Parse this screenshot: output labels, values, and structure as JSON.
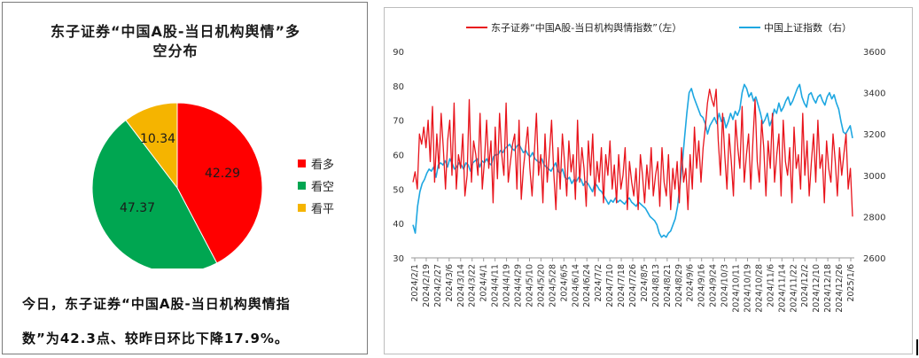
{
  "pie_chart": {
    "title_line1": "东子证券“中国A股-当日机构舆情”多",
    "title_line2": "空分布"
  },
  "note": {
    "line1": "今日，东子证券“中国A股-当日机构舆情指",
    "line2": "数”为42.3点、较昨日环比下降17.9%。"
  },
  "line_chart": {
    "legend_left": "东子证券“中国A股-当日机构舆情指数”（左）",
    "legend_right": "中国上证指数（右）"
  },
  "colors": {
    "bullish": "#ff0000",
    "bearish": "#00a651",
    "neutral": "#f5b400",
    "sentiment_line": "#e8141c",
    "index_line": "#1ea7e1"
  },
  "chart_data": [
    {
      "type": "pie",
      "labels": [
        "看多",
        "看空",
        "看平"
      ],
      "values": [
        42.29,
        47.37,
        10.34
      ],
      "data_labels": [
        "42.29",
        "47.37",
        "10.34"
      ],
      "legend_position": "right"
    },
    {
      "type": "line",
      "x_ticks": [
        "2024/2/1",
        "2024/2/19",
        "2024/2/27",
        "2024/3/6",
        "2024/3/14",
        "2024/3/22",
        "2024/4/1",
        "2024/4/11",
        "2024/4/19",
        "2024/4/29",
        "2024/5/10",
        "2024/5/20",
        "2024/5/28",
        "2024/6/5",
        "2024/6/14",
        "2024/6/24",
        "2024/7/2",
        "2024/7/10",
        "2024/7/18",
        "2024/7/26",
        "2024/8/5",
        "2024/8/13",
        "2024/8/21",
        "2024/8/29",
        "2024/9/6",
        "2024/9/16",
        "2024/9/24",
        "2024/10/3",
        "2024/10/11",
        "2024/10/19",
        "2024/10/28",
        "2024/11/6",
        "2024/11/14",
        "2024/11/22",
        "2024/12/2",
        "2024/12/10",
        "2024/12/18",
        "2024/12/26",
        "2025/1/6"
      ],
      "y_left_ticks": [
        "30",
        "40",
        "50",
        "60",
        "70",
        "80",
        "90"
      ],
      "y_left_range": [
        30,
        90
      ],
      "y_right_ticks": [
        "2600",
        "2800",
        "3000",
        "3200",
        "3400",
        "3600"
      ],
      "y_right_range": [
        2600,
        3600
      ],
      "series": [
        {
          "name": "东子证券“中国A股-当日机构舆情指数”（左）",
          "axis": "left",
          "values": [
            52,
            55,
            50,
            66,
            63,
            68,
            62,
            70,
            58,
            74,
            52,
            66,
            56,
            72,
            62,
            50,
            64,
            70,
            54,
            75,
            50,
            60,
            56,
            66,
            48,
            54,
            76,
            52,
            64,
            60,
            54,
            72,
            50,
            58,
            70,
            56,
            64,
            46,
            68,
            53,
            72,
            60,
            54,
            75,
            52,
            58,
            63,
            66,
            50,
            70,
            47,
            56,
            62,
            68,
            56,
            48,
            60,
            72,
            54,
            60,
            46,
            66,
            52,
            60,
            70,
            55,
            44,
            62,
            50,
            66,
            58,
            48,
            64,
            55,
            60,
            47,
            70,
            52,
            62,
            56,
            45,
            64,
            54,
            66,
            48,
            58,
            52,
            62,
            46,
            60,
            54,
            64,
            50,
            57,
            46,
            60,
            50,
            54,
            62,
            44,
            58,
            52,
            48,
            56,
            44,
            60,
            54,
            46,
            57,
            50,
            62,
            48,
            54,
            58,
            45,
            62,
            52,
            48,
            60,
            44,
            56,
            50,
            58,
            46,
            62,
            52,
            56,
            44,
            60,
            50,
            68,
            56,
            64,
            52,
            62,
            68,
            75,
            79,
            76,
            74,
            79,
            64,
            54,
            72,
            60,
            50,
            66,
            58,
            48,
            70,
            62,
            56,
            74,
            52,
            60,
            66,
            50,
            64,
            76,
            58,
            52,
            70,
            62,
            48,
            64,
            56,
            72,
            52,
            60,
            66,
            48,
            70,
            58,
            54,
            62,
            46,
            68,
            56,
            60,
            50,
            72,
            54,
            64,
            48,
            58,
            66,
            52,
            70,
            56,
            60,
            46,
            64,
            56,
            52,
            66,
            58,
            48,
            62,
            54,
            60,
            66,
            50,
            56,
            42
          ]
        },
        {
          "name": "中国上证指数（右）",
          "axis": "right",
          "values": [
            2760,
            2720,
            2850,
            2920,
            2960,
            2980,
            3010,
            3030,
            3020,
            3040,
            2990,
            3050,
            3060,
            3050,
            3070,
            3040,
            3080,
            3060,
            3030,
            3040,
            3060,
            3050,
            3030,
            3060,
            3050,
            3020,
            3060,
            3070,
            3080,
            3040,
            3070,
            3060,
            3080,
            3060,
            3050,
            3090,
            3100,
            3100,
            3120,
            3110,
            3130,
            3140,
            3150,
            3130,
            3120,
            3140,
            3150,
            3130,
            3110,
            3120,
            3100,
            3090,
            3110,
            3080,
            3070,
            3060,
            3080,
            3050,
            3040,
            3030,
            3020,
            3040,
            3060,
            3020,
            3010,
            3030,
            2990,
            2980,
            2990,
            2960,
            2980,
            2970,
            2990,
            2980,
            2950,
            2970,
            2960,
            2940,
            2920,
            2960,
            2950,
            2930,
            2920,
            2900,
            2880,
            2860,
            2880,
            2870,
            2890,
            2870,
            2880,
            2870,
            2860,
            2880,
            2890,
            2870,
            2860,
            2850,
            2870,
            2860,
            2850,
            2840,
            2820,
            2800,
            2790,
            2780,
            2760,
            2720,
            2700,
            2710,
            2700,
            2720,
            2730,
            2760,
            2790,
            2850,
            2950,
            3050,
            3180,
            3300,
            3400,
            3420,
            3380,
            3350,
            3320,
            3290,
            3280,
            3250,
            3200,
            3240,
            3260,
            3280,
            3250,
            3300,
            3260,
            3280,
            3230,
            3260,
            3300,
            3270,
            3310,
            3290,
            3320,
            3400,
            3440,
            3420,
            3380,
            3400,
            3360,
            3380,
            3340,
            3300,
            3250,
            3270,
            3300,
            3240,
            3270,
            3320,
            3300,
            3350,
            3310,
            3330,
            3360,
            3380,
            3340,
            3360,
            3390,
            3420,
            3440,
            3380,
            3350,
            3330,
            3390,
            3400,
            3370,
            3350,
            3380,
            3390,
            3360,
            3340,
            3380,
            3400,
            3370,
            3390,
            3350,
            3320,
            3260,
            3210,
            3200,
            3220,
            3240,
            3180
          ]
        }
      ],
      "legend_position": "top"
    }
  ]
}
